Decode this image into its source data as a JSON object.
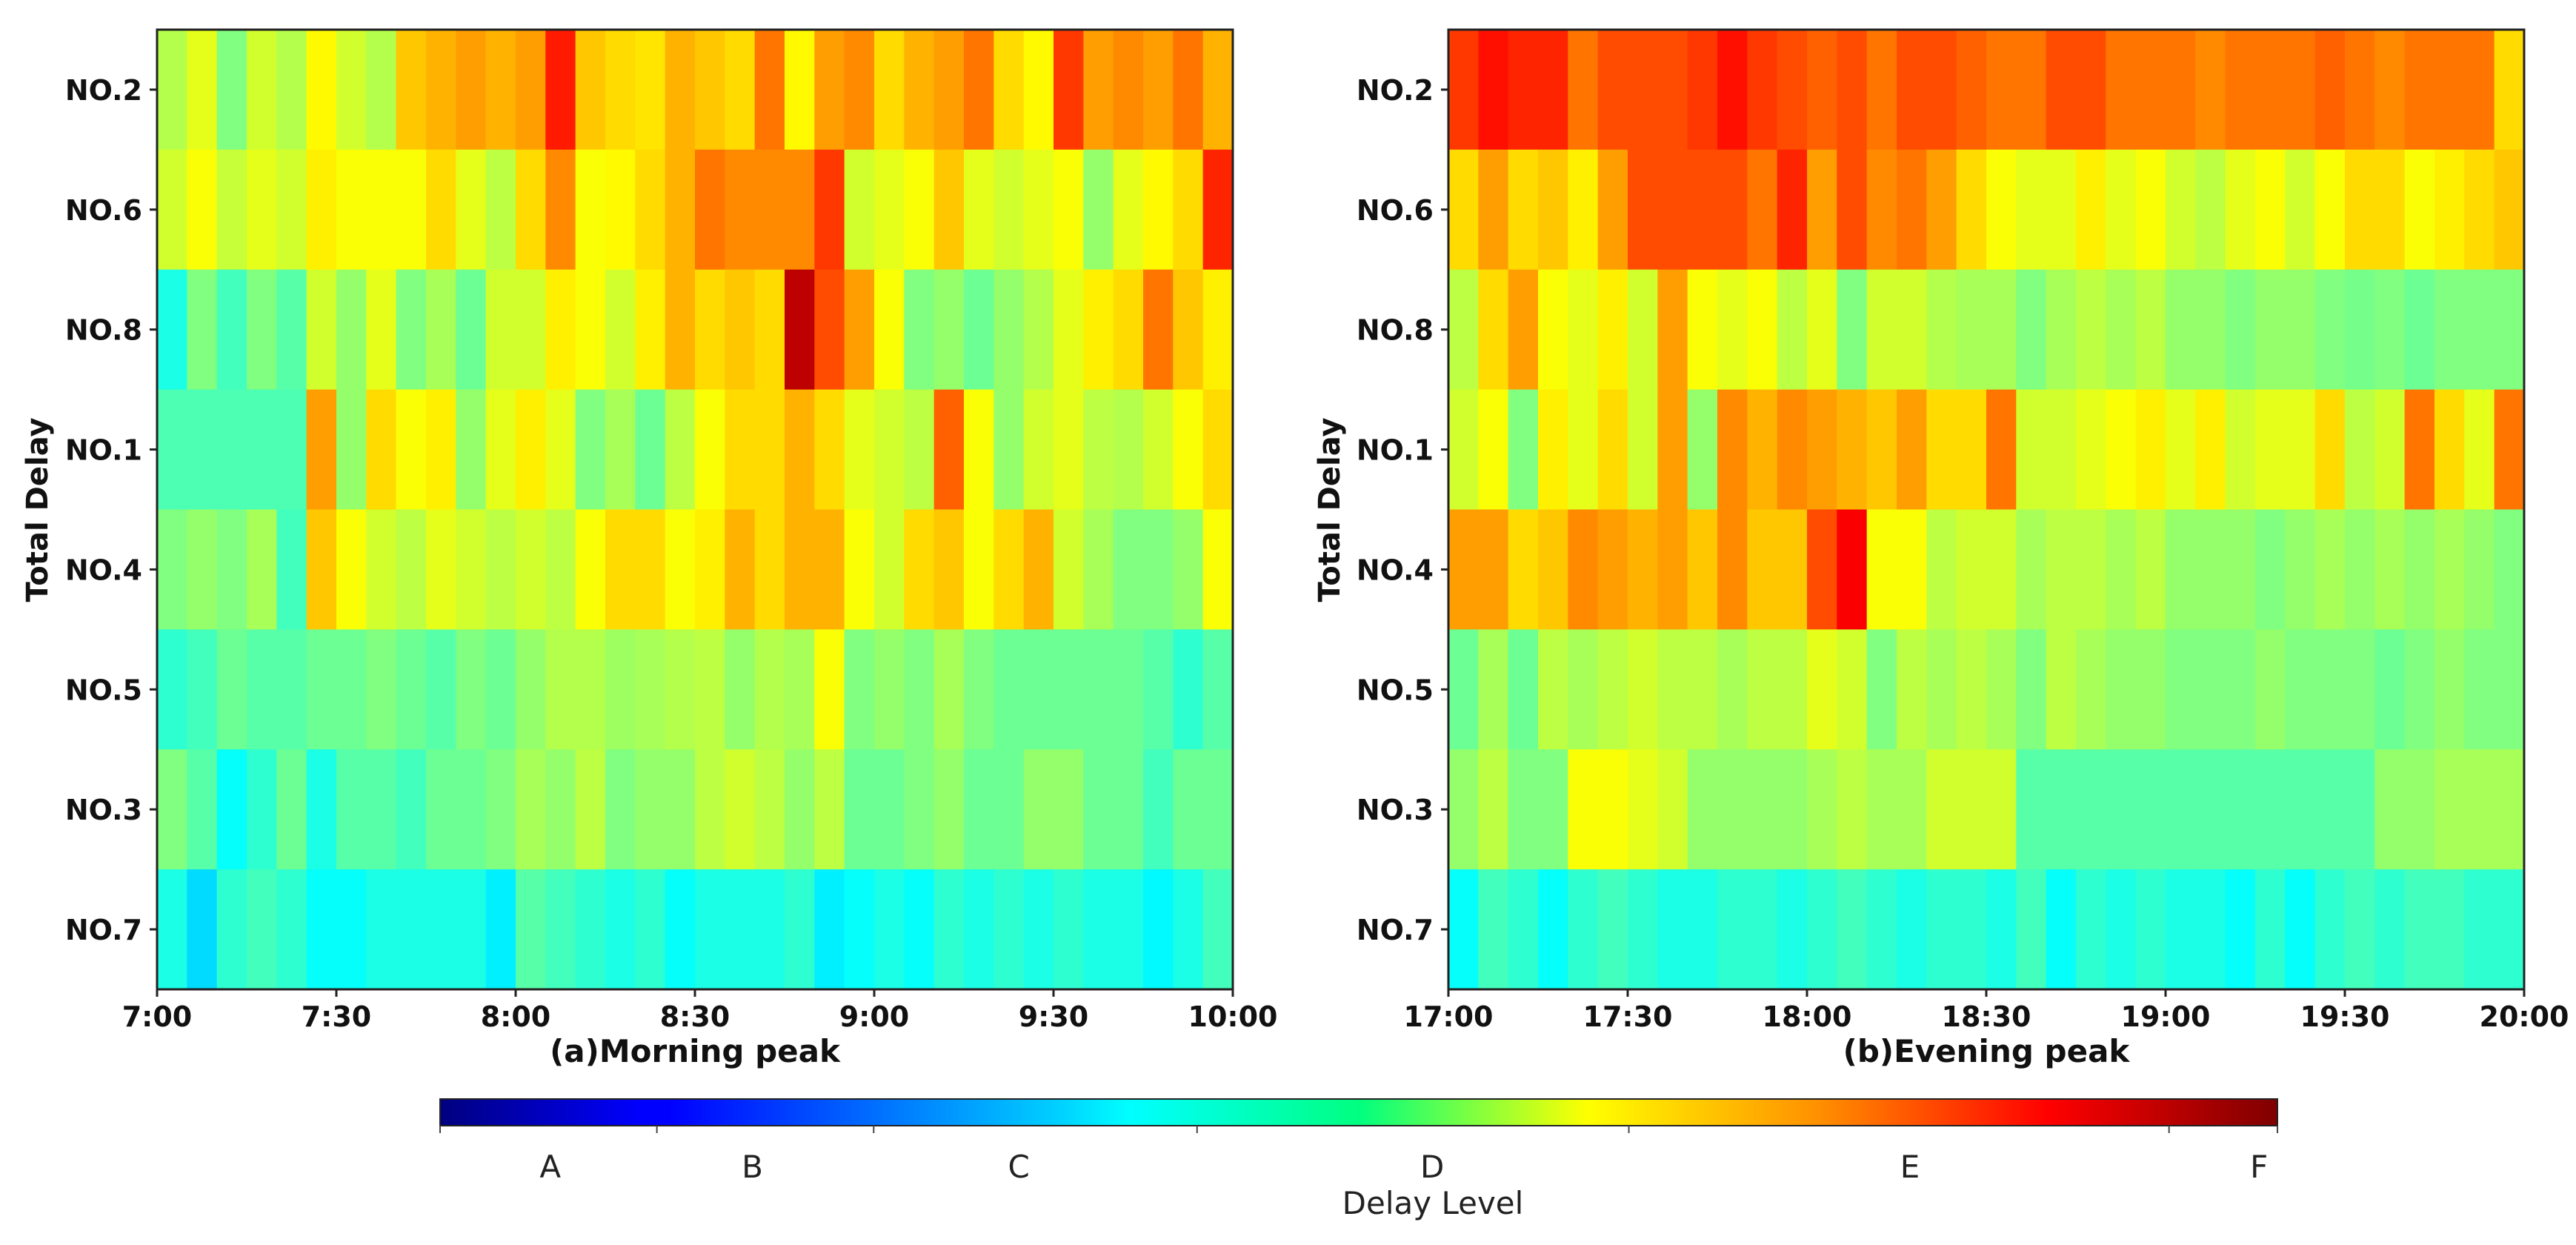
{
  "chart_data": {
    "type": "heatmap",
    "colormap": "jet",
    "value_range": [
      0,
      1
    ],
    "colorbar": {
      "title": "Delay Level",
      "level_labels": [
        "A",
        "B",
        "C",
        "D",
        "E",
        "F"
      ],
      "level_positions": [
        0.06,
        0.17,
        0.315,
        0.54,
        0.8,
        0.99
      ],
      "tick_positions": [
        0.0,
        0.118,
        0.236,
        0.412,
        0.647,
        0.941,
        1.0
      ]
    },
    "panels": [
      {
        "title": "(a)Morning peak",
        "ylabel": "Total Delay",
        "rows": [
          "NO.2",
          "NO.6",
          "NO.8",
          "NO.1",
          "NO.4",
          "NO.5",
          "NO.3",
          "NO.7"
        ],
        "x_ticks": [
          "7:00",
          "7:30",
          "8:00",
          "8:30",
          "9:00",
          "9:30",
          "10:00"
        ],
        "n_columns": 36,
        "x_range_minutes": [
          0,
          180
        ],
        "values": [
          [
            0.55,
            0.6,
            0.5,
            0.58,
            0.55,
            0.63,
            0.58,
            0.55,
            0.68,
            0.7,
            0.72,
            0.7,
            0.72,
            0.85,
            0.68,
            0.66,
            0.65,
            0.7,
            0.68,
            0.66,
            0.76,
            0.63,
            0.72,
            0.74,
            0.66,
            0.7,
            0.72,
            0.76,
            0.66,
            0.63,
            0.82,
            0.72,
            0.74,
            0.72,
            0.76,
            0.7
          ],
          [
            0.58,
            0.62,
            0.57,
            0.6,
            0.58,
            0.64,
            0.62,
            0.62,
            0.62,
            0.66,
            0.6,
            0.56,
            0.66,
            0.74,
            0.62,
            0.63,
            0.66,
            0.7,
            0.76,
            0.74,
            0.74,
            0.74,
            0.82,
            0.58,
            0.6,
            0.62,
            0.68,
            0.6,
            0.58,
            0.6,
            0.62,
            0.52,
            0.6,
            0.63,
            0.66,
            0.84
          ],
          [
            0.4,
            0.5,
            0.44,
            0.5,
            0.46,
            0.58,
            0.52,
            0.6,
            0.5,
            0.54,
            0.48,
            0.58,
            0.58,
            0.64,
            0.62,
            0.58,
            0.64,
            0.7,
            0.66,
            0.68,
            0.66,
            0.94,
            0.8,
            0.72,
            0.62,
            0.5,
            0.52,
            0.48,
            0.52,
            0.55,
            0.6,
            0.64,
            0.66,
            0.76,
            0.68,
            0.64
          ],
          [
            0.45,
            0.45,
            0.45,
            0.45,
            0.45,
            0.72,
            0.52,
            0.66,
            0.62,
            0.64,
            0.52,
            0.6,
            0.64,
            0.6,
            0.5,
            0.54,
            0.48,
            0.56,
            0.62,
            0.66,
            0.66,
            0.7,
            0.66,
            0.6,
            0.58,
            0.56,
            0.78,
            0.62,
            0.52,
            0.58,
            0.6,
            0.56,
            0.55,
            0.58,
            0.62,
            0.66
          ],
          [
            0.5,
            0.52,
            0.5,
            0.54,
            0.44,
            0.68,
            0.62,
            0.58,
            0.56,
            0.6,
            0.58,
            0.56,
            0.58,
            0.56,
            0.62,
            0.66,
            0.66,
            0.62,
            0.64,
            0.7,
            0.66,
            0.7,
            0.7,
            0.62,
            0.58,
            0.66,
            0.68,
            0.62,
            0.66,
            0.7,
            0.58,
            0.54,
            0.5,
            0.5,
            0.52,
            0.62
          ],
          [
            0.42,
            0.44,
            0.48,
            0.46,
            0.46,
            0.48,
            0.48,
            0.5,
            0.48,
            0.46,
            0.5,
            0.48,
            0.52,
            0.55,
            0.55,
            0.53,
            0.54,
            0.55,
            0.56,
            0.52,
            0.55,
            0.54,
            0.62,
            0.5,
            0.52,
            0.5,
            0.54,
            0.5,
            0.48,
            0.48,
            0.48,
            0.48,
            0.48,
            0.46,
            0.42,
            0.46
          ],
          [
            0.5,
            0.46,
            0.38,
            0.42,
            0.48,
            0.4,
            0.46,
            0.46,
            0.44,
            0.48,
            0.48,
            0.5,
            0.54,
            0.52,
            0.56,
            0.5,
            0.52,
            0.52,
            0.56,
            0.58,
            0.56,
            0.52,
            0.56,
            0.48,
            0.48,
            0.5,
            0.52,
            0.48,
            0.48,
            0.52,
            0.52,
            0.48,
            0.48,
            0.44,
            0.48,
            0.48
          ],
          [
            0.4,
            0.34,
            0.42,
            0.44,
            0.42,
            0.38,
            0.38,
            0.4,
            0.4,
            0.4,
            0.4,
            0.36,
            0.46,
            0.44,
            0.42,
            0.4,
            0.42,
            0.38,
            0.4,
            0.4,
            0.4,
            0.42,
            0.36,
            0.38,
            0.4,
            0.38,
            0.42,
            0.4,
            0.42,
            0.4,
            0.42,
            0.4,
            0.4,
            0.37,
            0.4,
            0.44
          ]
        ]
      },
      {
        "title": "(b)Evening peak",
        "ylabel": "Total Delay",
        "rows": [
          "NO.2",
          "NO.6",
          "NO.8",
          "NO.1",
          "NO.4",
          "NO.5",
          "NO.3",
          "NO.7"
        ],
        "x_ticks": [
          "17:00",
          "17:30",
          "18:00",
          "18:30",
          "19:00",
          "19:30",
          "20:00"
        ],
        "n_columns": 36,
        "x_range_minutes": [
          0,
          180
        ],
        "values": [
          [
            0.82,
            0.86,
            0.84,
            0.84,
            0.76,
            0.8,
            0.8,
            0.8,
            0.82,
            0.86,
            0.82,
            0.8,
            0.78,
            0.8,
            0.76,
            0.8,
            0.8,
            0.78,
            0.76,
            0.76,
            0.8,
            0.8,
            0.76,
            0.76,
            0.76,
            0.74,
            0.76,
            0.76,
            0.76,
            0.78,
            0.76,
            0.74,
            0.76,
            0.76,
            0.76,
            0.66
          ],
          [
            0.66,
            0.72,
            0.66,
            0.68,
            0.64,
            0.72,
            0.8,
            0.8,
            0.8,
            0.8,
            0.76,
            0.84,
            0.72,
            0.8,
            0.74,
            0.76,
            0.72,
            0.66,
            0.62,
            0.6,
            0.6,
            0.64,
            0.6,
            0.62,
            0.58,
            0.56,
            0.6,
            0.62,
            0.58,
            0.62,
            0.66,
            0.66,
            0.62,
            0.64,
            0.66,
            0.68
          ],
          [
            0.56,
            0.66,
            0.72,
            0.62,
            0.6,
            0.64,
            0.58,
            0.72,
            0.62,
            0.6,
            0.62,
            0.56,
            0.6,
            0.5,
            0.58,
            0.58,
            0.55,
            0.54,
            0.54,
            0.5,
            0.54,
            0.56,
            0.54,
            0.56,
            0.52,
            0.52,
            0.5,
            0.52,
            0.52,
            0.5,
            0.49,
            0.5,
            0.48,
            0.5,
            0.5,
            0.5
          ],
          [
            0.58,
            0.62,
            0.5,
            0.64,
            0.6,
            0.66,
            0.58,
            0.72,
            0.52,
            0.74,
            0.7,
            0.74,
            0.72,
            0.7,
            0.68,
            0.72,
            0.66,
            0.66,
            0.76,
            0.58,
            0.58,
            0.6,
            0.62,
            0.64,
            0.6,
            0.64,
            0.58,
            0.6,
            0.6,
            0.66,
            0.56,
            0.58,
            0.76,
            0.66,
            0.6,
            0.76
          ],
          [
            0.72,
            0.72,
            0.66,
            0.68,
            0.74,
            0.72,
            0.7,
            0.72,
            0.68,
            0.74,
            0.68,
            0.68,
            0.8,
            0.88,
            0.62,
            0.62,
            0.56,
            0.58,
            0.58,
            0.54,
            0.56,
            0.56,
            0.54,
            0.56,
            0.52,
            0.52,
            0.52,
            0.5,
            0.52,
            0.54,
            0.52,
            0.54,
            0.52,
            0.54,
            0.52,
            0.5
          ],
          [
            0.48,
            0.54,
            0.48,
            0.56,
            0.54,
            0.56,
            0.58,
            0.56,
            0.56,
            0.54,
            0.56,
            0.56,
            0.6,
            0.58,
            0.5,
            0.56,
            0.54,
            0.56,
            0.54,
            0.5,
            0.56,
            0.54,
            0.52,
            0.52,
            0.5,
            0.5,
            0.5,
            0.52,
            0.5,
            0.5,
            0.5,
            0.48,
            0.5,
            0.52,
            0.5,
            0.5
          ],
          [
            0.52,
            0.56,
            0.5,
            0.5,
            0.62,
            0.62,
            0.6,
            0.58,
            0.52,
            0.52,
            0.52,
            0.52,
            0.54,
            0.56,
            0.54,
            0.54,
            0.58,
            0.58,
            0.58,
            0.46,
            0.46,
            0.46,
            0.46,
            0.46,
            0.46,
            0.46,
            0.46,
            0.46,
            0.46,
            0.46,
            0.46,
            0.52,
            0.52,
            0.54,
            0.54,
            0.54
          ],
          [
            0.38,
            0.44,
            0.42,
            0.38,
            0.42,
            0.44,
            0.42,
            0.4,
            0.4,
            0.42,
            0.42,
            0.4,
            0.42,
            0.44,
            0.42,
            0.4,
            0.42,
            0.42,
            0.4,
            0.44,
            0.38,
            0.42,
            0.4,
            0.42,
            0.4,
            0.4,
            0.38,
            0.42,
            0.38,
            0.42,
            0.44,
            0.42,
            0.44,
            0.44,
            0.42,
            0.42
          ]
        ]
      }
    ]
  }
}
